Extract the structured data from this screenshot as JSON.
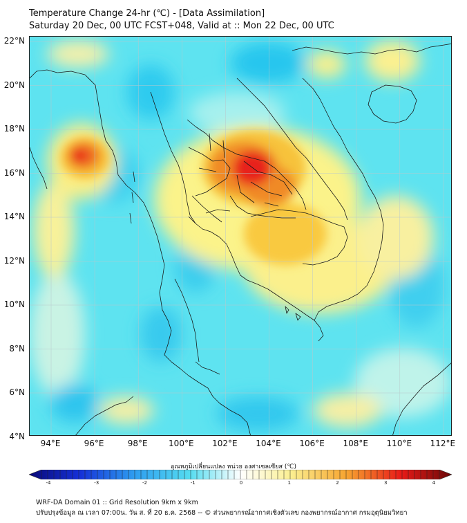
{
  "title_line1": "Temperature Change 24-hr (℃) - [Data Assimilation]",
  "title_line2": "Saturday 20 Dec, 00 UTC FCST+048, Valid at :: Mon 22 Dec, 00 UTC",
  "lat_labels": [
    "22°N",
    "20°N",
    "18°N",
    "16°N",
    "14°N",
    "12°N",
    "10°N",
    "8°N",
    "6°N",
    "4°N"
  ],
  "lon_labels": [
    "94°E",
    "96°E",
    "98°E",
    "100°E",
    "102°E",
    "104°E",
    "106°E",
    "108°E",
    "110°E",
    "112°E"
  ],
  "colorbar": {
    "title": "อุณหภูมิเปลี่ยนแปลง หน่วย องศาเซลเซียส (℃)",
    "ticks": [
      "-4",
      "-3",
      "-2",
      "-1",
      "0",
      "1",
      "2",
      "3",
      "4"
    ],
    "min": -4,
    "max": 4
  },
  "footer_line1": "WRF-DA Domain 01 :: Grid Resolution 9km x 9km",
  "footer_line2": "ปรับปรุงข้อมูล ณ เวลา 07:00น. วัน ส. ที่ 20 ธ.ค. 2568 -- © ส่วนพยากรณ์อากาศเชิงตัวเลข กองพยากรณ์อากาศ กรมอุตุนิยมวิทยา",
  "colors": {
    "background_field": "#5ee3f0",
    "warm_core": "#e8201a",
    "coast": "#1a1a1a"
  }
}
